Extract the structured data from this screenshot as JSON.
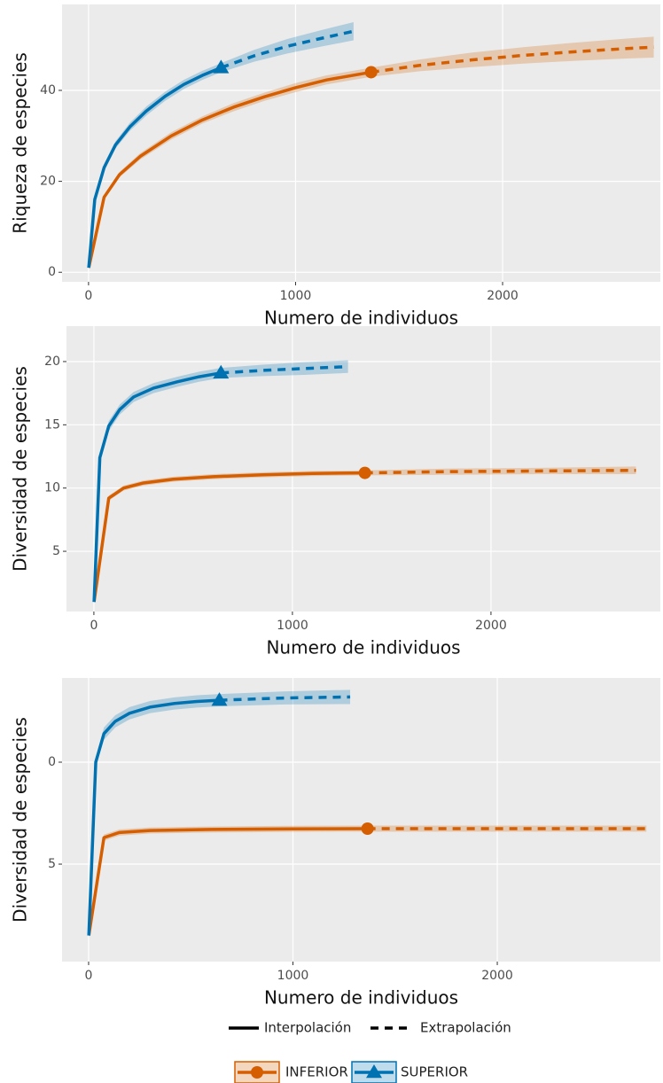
{
  "chart_data": [
    {
      "type": "line",
      "y_label": "Riqueza de especies",
      "x_label": "Numero de individuos",
      "xlim": [
        -128,
        2762
      ],
      "xticks": [
        0,
        1000,
        2000
      ],
      "ylim": [
        -2.1,
        58.9
      ],
      "yticks": [
        0,
        20,
        40
      ],
      "grid": true,
      "series": [
        {
          "interpolated": {
            "x": [
              1,
              75,
              150,
              250,
              400,
              550,
              700,
              850,
              1000,
              1150,
              1365
            ],
            "values": [
              1,
              16.5,
              21.5,
              25.5,
              30,
              33.5,
              36.3,
              38.6,
              40.6,
              42.3,
              44
            ],
            "ci": [
              0.2,
              0.5,
              0.6,
              0.7,
              0.8,
              0.8,
              0.9,
              0.9,
              1,
              1,
              1
            ]
          },
          "extrapolated": {
            "x": [
              1365,
              1600,
              1850,
              2100,
              2350,
              2600,
              2730
            ],
            "values": [
              44,
              45.5,
              46.7,
              47.7,
              48.5,
              49.2,
              49.5
            ],
            "ci": [
              1,
              1.3,
              1.6,
              1.8,
              2,
              2.2,
              2.3
            ]
          }
        },
        {
          "interpolated": {
            "x": [
              1,
              30,
              75,
              130,
              200,
              280,
              370,
              460,
              550,
              640
            ],
            "values": [
              1,
              16,
              23,
              28,
              32,
              35.5,
              38.7,
              41.3,
              43.3,
              45
            ],
            "ci": [
              0.2,
              0.6,
              0.7,
              0.8,
              0.9,
              1,
              1,
              1,
              1,
              1
            ]
          },
          "extrapolated": {
            "x": [
              640,
              800,
              960,
              1120,
              1280
            ],
            "values": [
              45,
              47.6,
              49.7,
              51.4,
              53
            ],
            "ci": [
              1,
              1.3,
              1.6,
              1.8,
              2
            ]
          }
        }
      ]
    },
    {
      "type": "line",
      "y_label": "Diversidad de especies",
      "x_label": "Numero de individuos",
      "xlim": [
        -138,
        2853
      ],
      "xticks": [
        0,
        1000,
        2000
      ],
      "ylim": [
        0.24,
        22.8
      ],
      "yticks": [
        5,
        10,
        15,
        20
      ],
      "grid": true,
      "series": [
        {
          "interpolated": {
            "x": [
              1,
              75,
              150,
              250,
              400,
              600,
              850,
              1100,
              1365
            ],
            "values": [
              1,
              9.2,
              10,
              10.4,
              10.7,
              10.9,
              11.05,
              11.15,
              11.2
            ],
            "ci": [
              0.1,
              0.2,
              0.2,
              0.2,
              0.2,
              0.2,
              0.2,
              0.2,
              0.2
            ]
          },
          "extrapolated": {
            "x": [
              1365,
              1800,
              2250,
              2730
            ],
            "values": [
              11.2,
              11.3,
              11.35,
              11.4
            ],
            "ci": [
              0.2,
              0.25,
              0.25,
              0.3
            ]
          }
        },
        {
          "interpolated": {
            "x": [
              1,
              30,
              75,
              130,
              200,
              300,
              420,
              530,
              640
            ],
            "values": [
              1,
              12.4,
              14.9,
              16.2,
              17.2,
              17.9,
              18.4,
              18.8,
              19.1
            ],
            "ci": [
              0.1,
              0.3,
              0.4,
              0.4,
              0.4,
              0.4,
              0.4,
              0.4,
              0.4
            ]
          },
          "extrapolated": {
            "x": [
              640,
              850,
              1060,
              1280
            ],
            "values": [
              19.1,
              19.3,
              19.45,
              19.6
            ],
            "ci": [
              0.4,
              0.45,
              0.5,
              0.5
            ]
          }
        }
      ]
    },
    {
      "type": "line",
      "y_label": "Diversidad de especies",
      "x_label": "Numero de individuos",
      "xlim": [
        -130,
        2798
      ],
      "xticks": [
        0,
        1000,
        2000
      ],
      "ylim": [
        -9.78,
        4.13
      ],
      "yticks": [
        0,
        {
          "value": -5,
          "label": "5"
        }
      ],
      "grid": true,
      "series": [
        {
          "interpolated": {
            "x": [
              1,
              75,
              150,
              300,
              600,
              1000,
              1365
            ],
            "values": [
              -8.5,
              -3.7,
              -3.45,
              -3.35,
              -3.3,
              -3.27,
              -3.26
            ],
            "ci": [
              0.1,
              0.15,
              0.15,
              0.15,
              0.15,
              0.15,
              0.15
            ]
          },
          "extrapolated": {
            "x": [
              1365,
              2000,
              2730
            ],
            "values": [
              -3.26,
              -3.26,
              -3.26
            ],
            "ci": [
              0.15,
              0.15,
              0.15
            ]
          }
        },
        {
          "interpolated": {
            "x": [
              1,
              35,
              75,
              130,
              200,
              300,
              420,
              530,
              640
            ],
            "values": [
              -8.5,
              0,
              1.4,
              2.0,
              2.4,
              2.7,
              2.88,
              2.98,
              3.04
            ],
            "ci": [
              0.1,
              0.2,
              0.3,
              0.3,
              0.3,
              0.3,
              0.3,
              0.3,
              0.3
            ]
          },
          "extrapolated": {
            "x": [
              640,
              960,
              1280
            ],
            "values": [
              3.04,
              3.15,
              3.2
            ],
            "ci": [
              0.3,
              0.32,
              0.35
            ]
          }
        }
      ]
    }
  ],
  "legend": {
    "linetypes": [
      "Interpolación",
      "Extrapolación"
    ],
    "groups": [
      {
        "name": "INFERIOR",
        "color": "#D55E00",
        "marker": "circle"
      },
      {
        "name": "SUPERIOR",
        "color": "#0072B2",
        "marker": "triangle"
      }
    ]
  }
}
